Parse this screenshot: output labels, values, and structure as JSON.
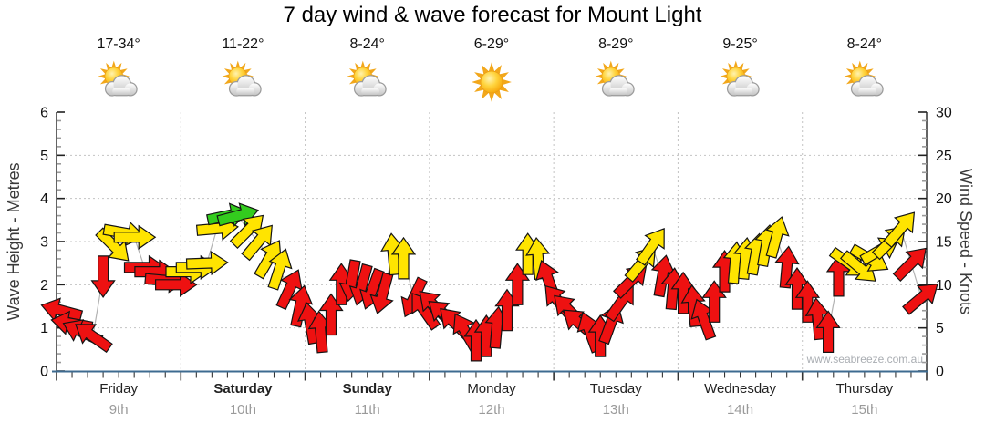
{
  "title": "7 day wind & wave forecast for Mount Light",
  "watermark": "www.seabreeze.com.au",
  "days": [
    {
      "name": "Friday",
      "date": "9th",
      "temp": "17-34°",
      "icon": "sun-cloud",
      "bold": false
    },
    {
      "name": "Saturday",
      "date": "10th",
      "temp": "11-22°",
      "icon": "sun-cloud",
      "bold": true
    },
    {
      "name": "Sunday",
      "date": "11th",
      "temp": "8-24°",
      "icon": "sun-cloud",
      "bold": true
    },
    {
      "name": "Monday",
      "date": "12th",
      "temp": "6-29°",
      "icon": "sun",
      "bold": false
    },
    {
      "name": "Tuesday",
      "date": "13th",
      "temp": "8-29°",
      "icon": "sun-cloud",
      "bold": false
    },
    {
      "name": "Wednesday",
      "date": "14th",
      "temp": "9-25°",
      "icon": "sun-cloud",
      "bold": false
    },
    {
      "name": "Thursday",
      "date": "15th",
      "temp": "8-24°",
      "icon": "sun-cloud",
      "bold": false
    }
  ],
  "chart_data": {
    "type": "wind-arrows",
    "y_left": {
      "label": "Wave Height - Metres",
      "min": 0,
      "max": 6,
      "ticks": [
        0,
        1,
        2,
        3,
        4,
        5,
        6
      ]
    },
    "y_right": {
      "label": "Wind Speed - Knots",
      "min": 0,
      "max": 30,
      "ticks": [
        0,
        5,
        10,
        15,
        20,
        25,
        30
      ]
    },
    "grid": {
      "h_lines_metres": [
        1,
        2,
        3,
        4,
        5
      ],
      "v_lines_at_day_boundaries": true
    },
    "points_per_day": 12,
    "colors": {
      "red": "#ee1111",
      "yellow": "#ffe400",
      "green": "#33cc1e"
    },
    "arrow_note": "kn = wind speed knots, dir = arrow rotation deg (0 = pointing right, clockwise positive)",
    "arrows": [
      {
        "kn": 7,
        "dir": 195,
        "c": "red"
      },
      {
        "kn": 5.5,
        "dir": 190,
        "c": "red"
      },
      {
        "kn": 4.5,
        "dir": 205,
        "c": "red"
      },
      {
        "kn": 4,
        "dir": 215,
        "c": "red"
      },
      {
        "kn": 11,
        "dir": 90,
        "c": "red"
      },
      {
        "kn": 14.5,
        "dir": 45,
        "c": "yellow"
      },
      {
        "kn": 16,
        "dir": 10,
        "c": "yellow"
      },
      {
        "kn": 15.5,
        "dir": 0,
        "c": "yellow"
      },
      {
        "kn": 12,
        "dir": 0,
        "c": "red"
      },
      {
        "kn": 11.5,
        "dir": 0,
        "c": "red"
      },
      {
        "kn": 10.5,
        "dir": 5,
        "c": "red"
      },
      {
        "kn": 10,
        "dir": 0,
        "c": "red"
      },
      {
        "kn": 11.5,
        "dir": 0,
        "c": "yellow"
      },
      {
        "kn": 12,
        "dir": 0,
        "c": "yellow"
      },
      {
        "kn": 12.5,
        "dir": -2,
        "c": "yellow"
      },
      {
        "kn": 16.5,
        "dir": -5,
        "c": "yellow"
      },
      {
        "kn": 18,
        "dir": -12,
        "c": "green"
      },
      {
        "kn": 18,
        "dir": -15,
        "c": "green"
      },
      {
        "kn": 16.3,
        "dir": -45,
        "c": "yellow"
      },
      {
        "kn": 15,
        "dir": -50,
        "c": "yellow"
      },
      {
        "kn": 13,
        "dir": -60,
        "c": "yellow"
      },
      {
        "kn": 11.8,
        "dir": -72,
        "c": "yellow"
      },
      {
        "kn": 9.5,
        "dir": -65,
        "c": "red"
      },
      {
        "kn": 7.5,
        "dir": -78,
        "c": "red"
      },
      {
        "kn": 5.5,
        "dir": -100,
        "c": "red"
      },
      {
        "kn": 4.5,
        "dir": -95,
        "c": "red"
      },
      {
        "kn": 6.5,
        "dir": -90,
        "c": "red"
      },
      {
        "kn": 10,
        "dir": -90,
        "c": "red"
      },
      {
        "kn": 10.5,
        "dir": 100,
        "c": "red"
      },
      {
        "kn": 10,
        "dir": 105,
        "c": "red"
      },
      {
        "kn": 9.5,
        "dir": 110,
        "c": "red"
      },
      {
        "kn": 9,
        "dir": 105,
        "c": "red"
      },
      {
        "kn": 13.5,
        "dir": -95,
        "c": "yellow"
      },
      {
        "kn": 13,
        "dir": -90,
        "c": "yellow"
      },
      {
        "kn": 8.5,
        "dir": 115,
        "c": "red"
      },
      {
        "kn": 7,
        "dir": -125,
        "c": "red"
      },
      {
        "kn": 7.5,
        "dir": -135,
        "c": "red"
      },
      {
        "kn": 6.5,
        "dir": -140,
        "c": "red"
      },
      {
        "kn": 5.5,
        "dir": -135,
        "c": "red"
      },
      {
        "kn": 4.5,
        "dir": -120,
        "c": "red"
      },
      {
        "kn": 3.5,
        "dir": -90,
        "c": "red"
      },
      {
        "kn": 4,
        "dir": -90,
        "c": "red"
      },
      {
        "kn": 5,
        "dir": -85,
        "c": "red"
      },
      {
        "kn": 7,
        "dir": -90,
        "c": "red"
      },
      {
        "kn": 10,
        "dir": -90,
        "c": "red"
      },
      {
        "kn": 13.5,
        "dir": -90,
        "c": "yellow"
      },
      {
        "kn": 13,
        "dir": -95,
        "c": "yellow"
      },
      {
        "kn": 10.5,
        "dir": -110,
        "c": "red"
      },
      {
        "kn": 8,
        "dir": -130,
        "c": "red"
      },
      {
        "kn": 7,
        "dir": -135,
        "c": "red"
      },
      {
        "kn": 5.5,
        "dir": -140,
        "c": "red"
      },
      {
        "kn": 4.5,
        "dir": -110,
        "c": "red"
      },
      {
        "kn": 4,
        "dir": -90,
        "c": "red"
      },
      {
        "kn": 5.5,
        "dir": -70,
        "c": "red"
      },
      {
        "kn": 8,
        "dir": -55,
        "c": "red"
      },
      {
        "kn": 10.5,
        "dir": -45,
        "c": "red"
      },
      {
        "kn": 12.5,
        "dir": -50,
        "c": "yellow"
      },
      {
        "kn": 14.5,
        "dir": -55,
        "c": "yellow"
      },
      {
        "kn": 11,
        "dir": -80,
        "c": "red"
      },
      {
        "kn": 9.5,
        "dir": -85,
        "c": "red"
      },
      {
        "kn": 9,
        "dir": -90,
        "c": "red"
      },
      {
        "kn": 7.5,
        "dir": -95,
        "c": "red"
      },
      {
        "kn": 6,
        "dir": -110,
        "c": "red"
      },
      {
        "kn": 8,
        "dir": -90,
        "c": "red"
      },
      {
        "kn": 11.5,
        "dir": -90,
        "c": "red"
      },
      {
        "kn": 12.5,
        "dir": -85,
        "c": "yellow"
      },
      {
        "kn": 13,
        "dir": -85,
        "c": "yellow"
      },
      {
        "kn": 13.5,
        "dir": -80,
        "c": "yellow"
      },
      {
        "kn": 14.5,
        "dir": -80,
        "c": "yellow"
      },
      {
        "kn": 15.5,
        "dir": -75,
        "c": "yellow"
      },
      {
        "kn": 12,
        "dir": -85,
        "c": "red"
      },
      {
        "kn": 9.5,
        "dir": -90,
        "c": "red"
      },
      {
        "kn": 8,
        "dir": -90,
        "c": "red"
      },
      {
        "kn": 6,
        "dir": -95,
        "c": "red"
      },
      {
        "kn": 4.5,
        "dir": -90,
        "c": "red"
      },
      {
        "kn": 11,
        "dir": -90,
        "c": "red"
      },
      {
        "kn": 12.5,
        "dir": 35,
        "c": "yellow"
      },
      {
        "kn": 12,
        "dir": 40,
        "c": "yellow"
      },
      {
        "kn": 13,
        "dir": 30,
        "c": "yellow"
      },
      {
        "kn": 14,
        "dir": -30,
        "c": "yellow"
      },
      {
        "kn": 15,
        "dir": -45,
        "c": "yellow"
      },
      {
        "kn": 16.5,
        "dir": -50,
        "c": "yellow"
      },
      {
        "kn": 12.5,
        "dir": -45,
        "c": "red"
      },
      {
        "kn": 8.5,
        "dir": -40,
        "c": "red"
      }
    ]
  }
}
